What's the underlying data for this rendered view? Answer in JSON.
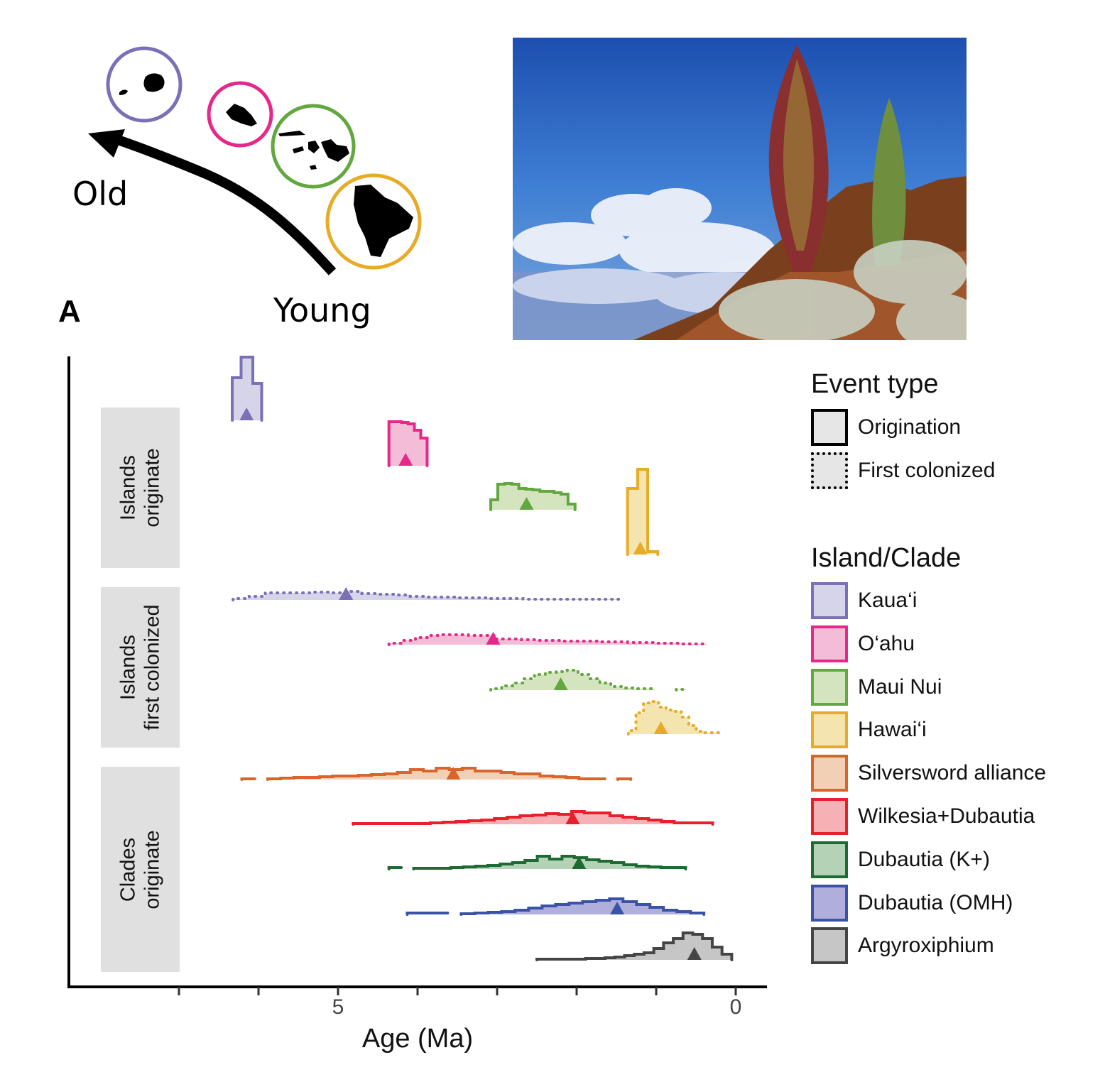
{
  "map": {
    "old_label": "Old",
    "young_label": "Young",
    "islands": [
      {
        "name": "Kaua'i",
        "color": "#7B6FB8"
      },
      {
        "name": "O'ahu",
        "color": "#E5288A"
      },
      {
        "name": "Maui Nui",
        "color": "#62A73F"
      },
      {
        "name": "Hawai'i",
        "color": "#E6AB27"
      }
    ]
  },
  "panel_label": "A",
  "chart_data": {
    "type": "ridgeline-histogram",
    "xlabel": "Age (Ma)",
    "xlim": [
      7.4,
      -0.4
    ],
    "x_reversed": true,
    "x_ticks": [
      7,
      6,
      5,
      4,
      3,
      2,
      1,
      0
    ],
    "x_tick_labels": [
      {
        "value": 5,
        "label": "5"
      },
      {
        "value": 0,
        "label": "0"
      }
    ],
    "facets": [
      {
        "label_line1": "Islands",
        "label_line2": "originate"
      },
      {
        "label_line1": "Islands",
        "label_line2": "first colonized"
      },
      {
        "label_line1": "Clades",
        "label_line2": "originate"
      }
    ],
    "series": [
      {
        "facet": 0,
        "event": "Origination",
        "clade": "Kaua'i",
        "range": [
          6.33,
          5.96
        ],
        "estimate": 6.15,
        "density": [
          60,
          60,
          60,
          89,
          89,
          89,
          89,
          52,
          52,
          52
        ]
      },
      {
        "facet": 0,
        "event": "Origination",
        "clade": "O'ahu",
        "range": [
          4.36,
          3.88
        ],
        "estimate": 4.15,
        "density": [
          62,
          62,
          61,
          59,
          50,
          39
        ]
      },
      {
        "facet": 0,
        "event": "Origination",
        "clade": "Maui Nui",
        "range": [
          3.08,
          2.02
        ],
        "estimate": 2.63,
        "density": [
          14,
          36,
          37,
          36,
          30,
          29,
          28,
          26,
          26,
          24,
          22,
          8
        ]
      },
      {
        "facet": 0,
        "event": "Origination",
        "clade": "Hawai'i",
        "range": [
          1.36,
          0.98
        ],
        "estimate": 1.2,
        "density": [
          93,
          93,
          120,
          120,
          4,
          4
        ]
      },
      {
        "facet": 1,
        "event": "First colonized",
        "clade": "Kaua'i",
        "range": [
          6.32,
          1.46
        ],
        "estimate": 4.9,
        "density": [
          2,
          5,
          10,
          10,
          10,
          11,
          10,
          12,
          9,
          8,
          7,
          5,
          4,
          4,
          3,
          3,
          2,
          2,
          1,
          1,
          1,
          1,
          1,
          1
        ]
      },
      {
        "facet": 1,
        "event": "First colonized",
        "clade": "O'ahu",
        "range": [
          4.36,
          0.36
        ],
        "estimate": 3.05,
        "density": [
          2,
          6,
          10,
          13,
          14,
          14,
          13,
          13,
          8,
          8,
          7,
          6,
          6,
          5,
          5,
          5,
          4,
          4,
          3,
          3,
          2,
          2,
          1,
          1
        ]
      },
      {
        "facet": 1,
        "event": "First colonized",
        "clade": "Maui Nui",
        "range": [
          3.08,
          0.61
        ],
        "estimate": 2.2,
        "density": [
          2,
          6,
          10,
          16,
          22,
          25,
          26,
          28,
          22,
          16,
          10,
          5,
          3,
          2,
          2,
          0,
          0,
          1
        ]
      },
      {
        "facet": 1,
        "event": "First colonized",
        "clade": "Hawai'i",
        "range": [
          1.35,
          0.21
        ],
        "estimate": 0.94,
        "density": [
          5,
          30,
          44,
          46,
          38,
          34,
          32,
          24,
          12,
          4,
          2,
          2
        ]
      },
      {
        "facet": 2,
        "event": "Origination",
        "clade": "Silversword alliance",
        "range": [
          6.21,
          1.32
        ],
        "estimate": 3.55,
        "density": [
          1,
          0,
          1,
          2,
          3,
          3,
          4,
          5,
          5,
          6,
          7,
          8,
          10,
          14,
          12,
          16,
          14,
          16,
          12,
          12,
          10,
          8,
          8,
          5,
          4,
          3,
          1,
          1,
          0,
          1
        ]
      },
      {
        "facet": 2,
        "event": "Origination",
        "clade": "Wilkesia+Dubautia",
        "range": [
          4.81,
          0.29
        ],
        "estimate": 2.05,
        "density": [
          1,
          1,
          1,
          1,
          1,
          1,
          2,
          3,
          4,
          5,
          6,
          8,
          10,
          12,
          13,
          15,
          14,
          18,
          16,
          16,
          12,
          10,
          8,
          6,
          4,
          2,
          2,
          2
        ]
      },
      {
        "facet": 2,
        "event": "Origination",
        "clade": "Dubautia (K+)",
        "range": [
          4.36,
          0.63
        ],
        "estimate": 1.97,
        "density": [
          2,
          0,
          1,
          1,
          1,
          2,
          3,
          4,
          5,
          7,
          9,
          12,
          18,
          14,
          18,
          16,
          13,
          11,
          9,
          6,
          4,
          3,
          2,
          2
        ]
      },
      {
        "facet": 2,
        "event": "Origination",
        "clade": "Dubautia (OMH)",
        "range": [
          4.13,
          0.4
        ],
        "estimate": 1.49,
        "density": [
          2,
          2,
          2,
          0,
          1,
          2,
          3,
          4,
          6,
          9,
          12,
          14,
          16,
          18,
          20,
          22,
          18,
          14,
          10,
          6,
          4,
          2
        ]
      },
      {
        "facet": 2,
        "event": "Origination",
        "clade": "Argyroxiphium",
        "range": [
          2.5,
          0.05
        ],
        "estimate": 0.52,
        "density": [
          1,
          1,
          1,
          1,
          1,
          2,
          2,
          3,
          4,
          6,
          8,
          10,
          16,
          24,
          30,
          38,
          36,
          30,
          18,
          8
        ]
      }
    ],
    "legend": {
      "event_title": "Event type",
      "event_items": [
        {
          "label": "Origination",
          "style": "solid"
        },
        {
          "label": "First colonized",
          "style": "dotted"
        }
      ],
      "clade_title": "Island/Clade",
      "clade_items": [
        {
          "label": "Kaua‘i",
          "line": "#7B6FB8",
          "fill": "#D6D4E8"
        },
        {
          "label": "O‘ahu",
          "line": "#E5288A",
          "fill": "#F3BCD7"
        },
        {
          "label": "Maui Nui",
          "line": "#62A73F",
          "fill": "#D3E4BE"
        },
        {
          "label": "Hawai‘i",
          "line": "#E6AB27",
          "fill": "#F4E4B0"
        },
        {
          "label": "Silversword alliance",
          "line": "#D9652A",
          "fill": "#F2D0B6"
        },
        {
          "label": "Wilkesia+Dubautia",
          "line": "#E8202A",
          "fill": "#F5B1B4"
        },
        {
          "label": "Dubautia (K+)",
          "line": "#1E6A33",
          "fill": "#B4D3B6"
        },
        {
          "label": "Dubautia (OMH)",
          "line": "#3A53A4",
          "fill": "#B0AEDA"
        },
        {
          "label": "Argyroxiphium",
          "line": "#454545",
          "fill": "#C6C6C6"
        }
      ]
    }
  }
}
